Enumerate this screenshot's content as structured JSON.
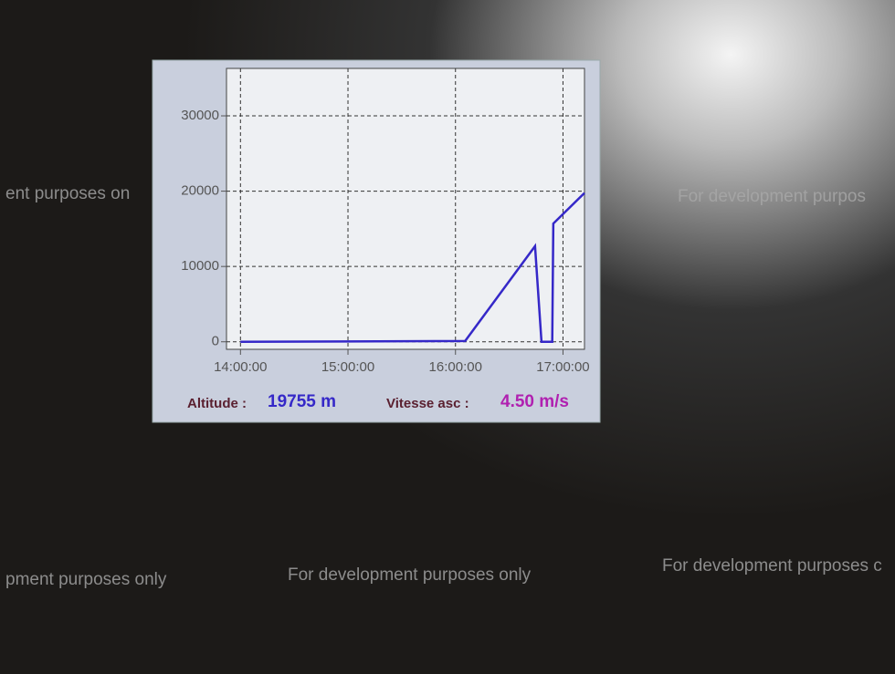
{
  "chart_data": {
    "type": "line",
    "x": [
      14.0,
      16.09,
      16.74,
      16.8,
      16.86,
      16.9,
      16.91,
      17.2
    ],
    "values": [
      0,
      100,
      12700,
      0,
      0,
      0,
      15700,
      19755
    ],
    "color": "#3528c8",
    "xlim": [
      13.87,
      17.2
    ],
    "ylim": [
      -1000,
      36300
    ],
    "xticks": [
      {
        "value": 14,
        "label": "14:00:00"
      },
      {
        "value": 15,
        "label": "15:00:00"
      },
      {
        "value": 16,
        "label": "16:00:00"
      },
      {
        "value": 17,
        "label": "17:00:00"
      }
    ],
    "yticks": [
      0,
      10000,
      20000,
      30000
    ],
    "grid": true,
    "readouts": [
      {
        "label": "Altitude :",
        "value": "19755 m"
      },
      {
        "label": "Vitesse asc :",
        "value": "4.50 m/s"
      }
    ]
  },
  "watermarks": [
    "ent purposes on",
    "For development purpos",
    "pment purposes only",
    "For development purposes only",
    "For development purposes c"
  ]
}
